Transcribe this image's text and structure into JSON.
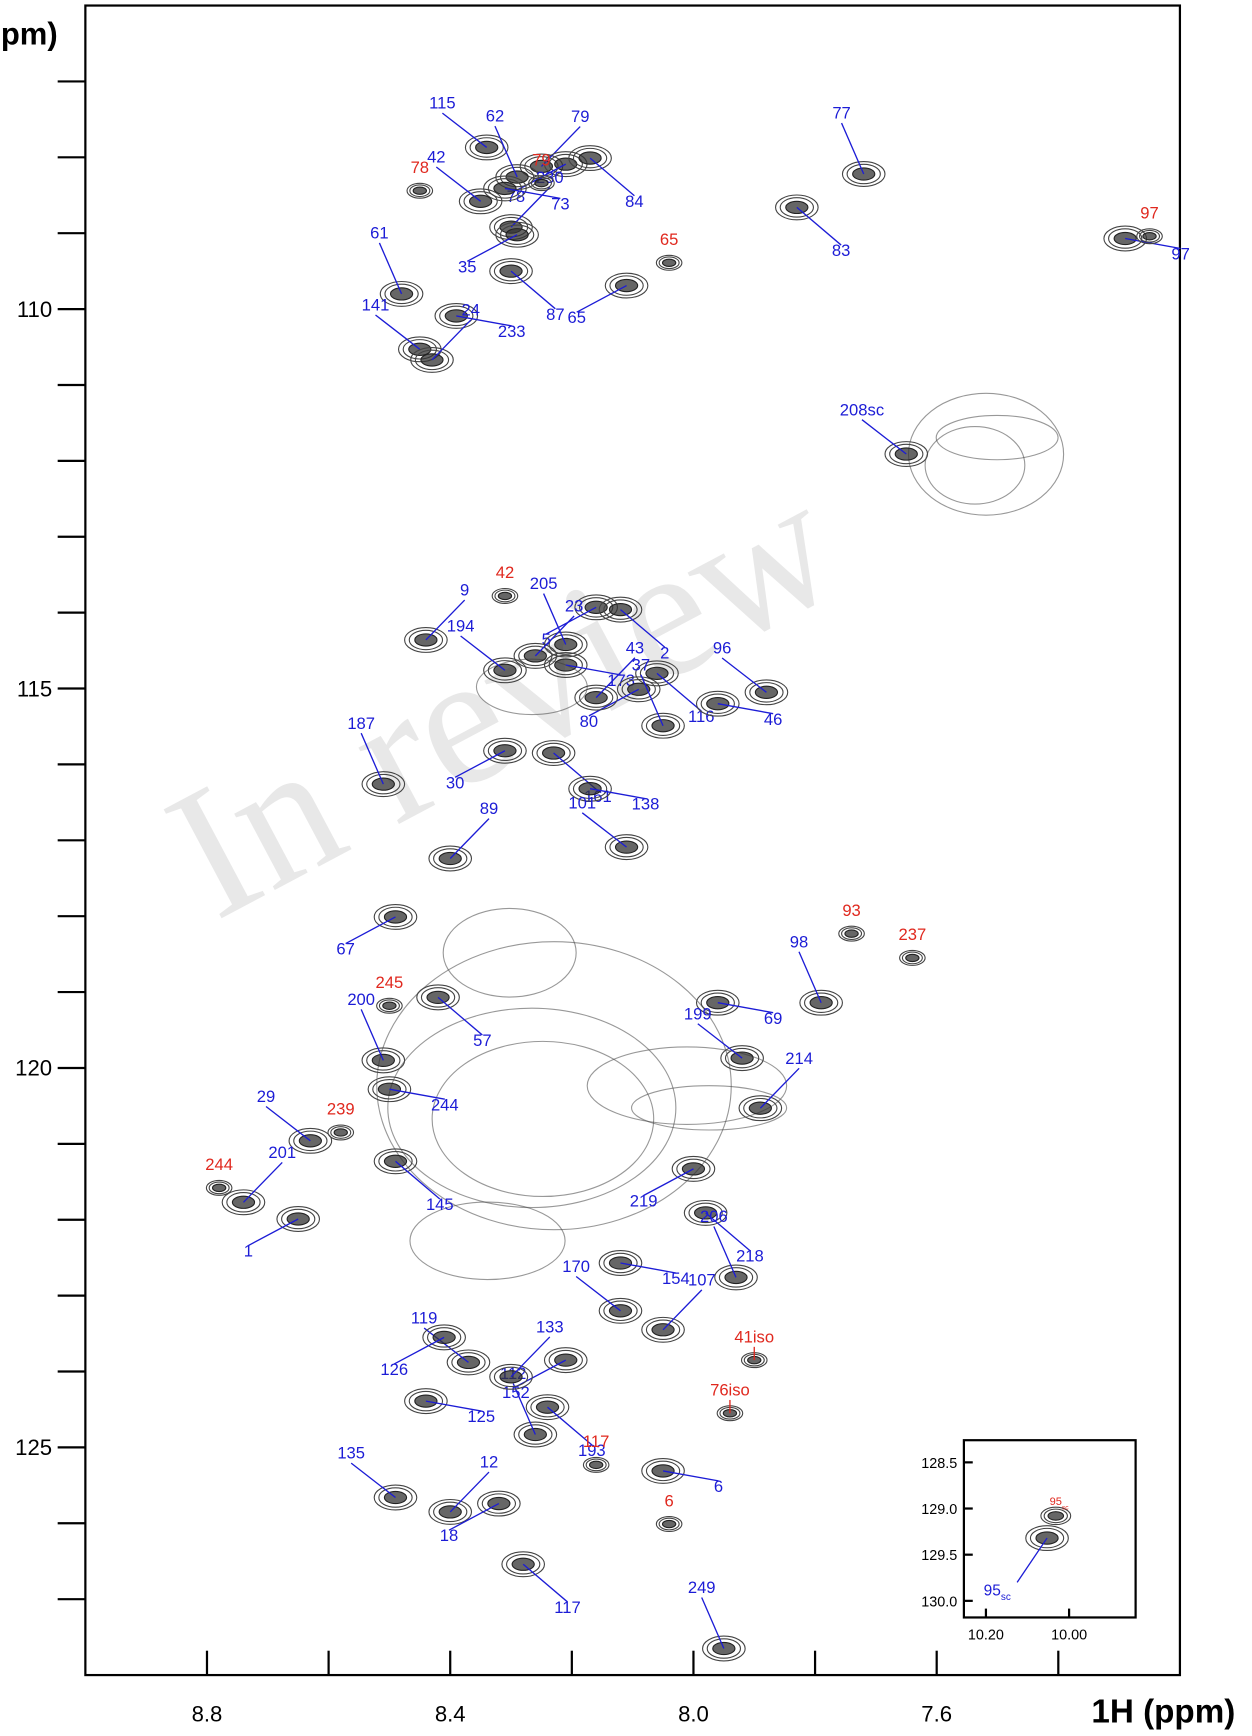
{
  "chart_data": {
    "type": "scatter",
    "x_label": "1H (ppm)",
    "y_label": "pm)",
    "watermark": "In review",
    "xlim": [
      9.0,
      7.2
    ],
    "ylim": [
      106,
      128
    ],
    "xticks": [
      8.8,
      8.4,
      {
        "value": 8,
        "label": "8.0"
      },
      7.6
    ],
    "xticks_minor": [
      8.6,
      8.2,
      7.8,
      7.4
    ],
    "yticks": [
      110,
      115,
      120,
      125
    ],
    "yticks_minor": [
      107,
      108,
      109,
      111,
      112,
      113,
      114,
      116,
      117,
      118,
      119,
      121,
      122,
      123,
      124,
      126,
      127
    ],
    "points": [
      {
        "label": "115",
        "x": 8.34,
        "y": 107.87,
        "color": "#1c1cd6"
      },
      {
        "label": "79",
        "x": 8.25,
        "y": 108.12,
        "color": "#1c1cd6"
      },
      {
        "label": "78",
        "x": 8.21,
        "y": 108.09,
        "color": "#1c1cd6"
      },
      {
        "label": "84",
        "x": 8.17,
        "y": 108.01,
        "color": "#1c1cd6"
      },
      {
        "label": "62",
        "x": 8.29,
        "y": 108.26,
        "color": "#1c1cd6"
      },
      {
        "label": "73",
        "x": 8.31,
        "y": 108.41,
        "color": "#1c1cd6"
      },
      {
        "label": "42",
        "x": 8.35,
        "y": 108.58,
        "color": "#1c1cd6"
      },
      {
        "label": "230",
        "x": 8.3,
        "y": 108.92,
        "color": "#1c1cd6"
      },
      {
        "label": "35",
        "x": 8.29,
        "y": 109.02,
        "color": "#1c1cd6"
      },
      {
        "label": "87",
        "x": 8.3,
        "y": 109.5,
        "color": "#1c1cd6"
      },
      {
        "label": "61",
        "x": 8.48,
        "y": 109.8,
        "color": "#1c1cd6"
      },
      {
        "label": "233",
        "x": 8.39,
        "y": 110.09,
        "color": "#1c1cd6"
      },
      {
        "label": "141",
        "x": 8.45,
        "y": 110.53,
        "color": "#1c1cd6"
      },
      {
        "label": "24",
        "x": 8.43,
        "y": 110.67,
        "color": "#1c1cd6"
      },
      {
        "label": "65",
        "x": 8.11,
        "y": 109.69,
        "color": "#1c1cd6"
      },
      {
        "label": "83",
        "x": 7.83,
        "y": 108.66,
        "color": "#1c1cd6"
      },
      {
        "label": "77",
        "x": 7.72,
        "y": 108.22,
        "color": "#1c1cd6"
      },
      {
        "label": "97",
        "x": 7.29,
        "y": 109.07,
        "color": "#1c1cd6"
      },
      {
        "label": "208sc",
        "x": 7.65,
        "y": 111.91,
        "color": "#1c1cd6"
      },
      {
        "label": "9",
        "x": 8.44,
        "y": 114.36,
        "color": "#1c1cd6"
      },
      {
        "label": "5",
        "x": 8.16,
        "y": 113.93,
        "color": "#1c1cd6"
      },
      {
        "label": "2",
        "x": 8.12,
        "y": 113.96,
        "color": "#1c1cd6"
      },
      {
        "label": "205",
        "x": 8.21,
        "y": 114.42,
        "color": "#1c1cd6"
      },
      {
        "label": "173",
        "x": 8.21,
        "y": 114.69,
        "color": "#1c1cd6"
      },
      {
        "label": "194",
        "x": 8.31,
        "y": 114.76,
        "color": "#1c1cd6"
      },
      {
        "label": "23",
        "x": 8.26,
        "y": 114.57,
        "color": "#1c1cd6"
      },
      {
        "label": "80",
        "x": 8.09,
        "y": 115.01,
        "color": "#1c1cd6"
      },
      {
        "label": "116",
        "x": 8.06,
        "y": 114.8,
        "color": "#1c1cd6"
      },
      {
        "label": "37",
        "x": 8.05,
        "y": 115.49,
        "color": "#1c1cd6"
      },
      {
        "label": "46",
        "x": 7.96,
        "y": 115.2,
        "color": "#1c1cd6"
      },
      {
        "label": "96",
        "x": 7.88,
        "y": 115.05,
        "color": "#1c1cd6"
      },
      {
        "label": "43",
        "x": 8.16,
        "y": 115.12,
        "color": "#1c1cd6"
      },
      {
        "label": "30",
        "x": 8.31,
        "y": 115.82,
        "color": "#1c1cd6"
      },
      {
        "label": "161",
        "x": 8.23,
        "y": 115.85,
        "color": "#1c1cd6"
      },
      {
        "label": "187",
        "x": 8.51,
        "y": 116.26,
        "color": "#1c1cd6"
      },
      {
        "label": "138",
        "x": 8.17,
        "y": 116.32,
        "color": "#1c1cd6"
      },
      {
        "label": "101",
        "x": 8.11,
        "y": 117.09,
        "color": "#1c1cd6"
      },
      {
        "label": "89",
        "x": 8.4,
        "y": 117.24,
        "color": "#1c1cd6"
      },
      {
        "label": "67",
        "x": 8.49,
        "y": 118.01,
        "color": "#1c1cd6"
      },
      {
        "label": "57",
        "x": 8.42,
        "y": 119.07,
        "color": "#1c1cd6"
      },
      {
        "label": "200",
        "x": 8.51,
        "y": 119.9,
        "color": "#1c1cd6"
      },
      {
        "label": "244",
        "x": 8.5,
        "y": 120.28,
        "color": "#1c1cd6"
      },
      {
        "label": "29",
        "x": 8.63,
        "y": 120.96,
        "color": "#1c1cd6"
      },
      {
        "label": "201",
        "x": 8.74,
        "y": 121.77,
        "color": "#1c1cd6"
      },
      {
        "label": "1",
        "x": 8.65,
        "y": 121.99,
        "color": "#1c1cd6"
      },
      {
        "label": "145",
        "x": 8.49,
        "y": 121.23,
        "color": "#1c1cd6"
      },
      {
        "label": "98",
        "x": 7.79,
        "y": 119.14,
        "color": "#1c1cd6"
      },
      {
        "label": "69",
        "x": 7.96,
        "y": 119.14,
        "color": "#1c1cd6"
      },
      {
        "label": "199",
        "x": 7.92,
        "y": 119.87,
        "color": "#1c1cd6"
      },
      {
        "label": "214",
        "x": 7.89,
        "y": 120.53,
        "color": "#1c1cd6"
      },
      {
        "label": "219",
        "x": 8.0,
        "y": 121.33,
        "color": "#1c1cd6"
      },
      {
        "label": "218",
        "x": 7.98,
        "y": 121.91,
        "color": "#1c1cd6"
      },
      {
        "label": "206",
        "x": 7.93,
        "y": 122.76,
        "color": "#1c1cd6"
      },
      {
        "label": "154",
        "x": 8.12,
        "y": 122.57,
        "color": "#1c1cd6"
      },
      {
        "label": "170",
        "x": 8.12,
        "y": 123.2,
        "color": "#1c1cd6"
      },
      {
        "label": "107",
        "x": 8.05,
        "y": 123.45,
        "color": "#1c1cd6"
      },
      {
        "label": "152",
        "x": 8.21,
        "y": 123.85,
        "color": "#1c1cd6"
      },
      {
        "label": "193",
        "x": 8.24,
        "y": 124.47,
        "color": "#1c1cd6"
      },
      {
        "label": "112",
        "x": 8.26,
        "y": 124.83,
        "color": "#1c1cd6"
      },
      {
        "label": "6",
        "x": 8.05,
        "y": 125.31,
        "color": "#1c1cd6"
      },
      {
        "label": "135",
        "x": 8.49,
        "y": 125.66,
        "color": "#1c1cd6"
      },
      {
        "label": "12",
        "x": 8.4,
        "y": 125.85,
        "color": "#1c1cd6"
      },
      {
        "label": "18",
        "x": 8.32,
        "y": 125.74,
        "color": "#1c1cd6"
      },
      {
        "label": "117",
        "x": 8.28,
        "y": 126.54,
        "color": "#1c1cd6"
      },
      {
        "label": "249",
        "x": 7.95,
        "y": 127.65,
        "color": "#1c1cd6"
      },
      {
        "label": "125",
        "x": 8.44,
        "y": 124.39,
        "color": "#1c1cd6"
      },
      {
        "label": "119",
        "x": 8.37,
        "y": 123.88,
        "color": "#1c1cd6"
      },
      {
        "label": "133",
        "x": 8.3,
        "y": 124.07,
        "color": "#1c1cd6"
      },
      {
        "label": "126",
        "x": 8.41,
        "y": 123.55,
        "color": "#1c1cd6"
      },
      {
        "label": "41iso",
        "x": 7.9,
        "y": 123.85,
        "color": "#e0281e"
      },
      {
        "label": "76iso",
        "x": 7.94,
        "y": 124.55,
        "color": "#e0281e"
      },
      {
        "label": "78",
        "x": 8.45,
        "y": 108.44,
        "color": "#e0281e"
      },
      {
        "label": "79",
        "x": 8.25,
        "y": 108.34,
        "color": "#e0281e"
      },
      {
        "label": "65",
        "x": 8.04,
        "y": 109.39,
        "color": "#e0281e"
      },
      {
        "label": "97",
        "x": 7.25,
        "y": 109.04,
        "color": "#e0281e"
      },
      {
        "label": "42",
        "x": 8.31,
        "y": 113.78,
        "color": "#e0281e"
      },
      {
        "label": "245",
        "x": 8.5,
        "y": 119.18,
        "color": "#e0281e"
      },
      {
        "label": "239",
        "x": 8.58,
        "y": 120.85,
        "color": "#e0281e"
      },
      {
        "label": "244",
        "x": 8.78,
        "y": 121.58,
        "color": "#e0281e"
      },
      {
        "label": "93",
        "x": 7.74,
        "y": 118.23,
        "color": "#e0281e"
      },
      {
        "label": "237",
        "x": 7.64,
        "y": 118.55,
        "color": "#e0281e"
      },
      {
        "label": "117",
        "x": 8.16,
        "y": 125.23,
        "color": "#e0281e"
      },
      {
        "label": "6",
        "x": 8.04,
        "y": 126.01,
        "color": "#e0281e"
      }
    ],
    "inset": {
      "xlim": [
        10.253,
        9.84
      ],
      "ylim": [
        128.26,
        130.18
      ],
      "xticks": [
        {
          "value": 10.2,
          "label": "10.20"
        },
        {
          "value": 10,
          "label": "10.00"
        }
      ],
      "yticks": [
        128.5,
        {
          "value": 129,
          "label": "129.0"
        },
        129.5,
        {
          "value": 130,
          "label": "130.0"
        }
      ],
      "points": [
        {
          "label": "95",
          "sub": "sc",
          "x": 10.053,
          "y": 129.32,
          "color": "#1c1cd6"
        },
        {
          "label": "95",
          "sub": "sc",
          "x": 10.032,
          "y": 129.08,
          "color": "#e0281e"
        }
      ]
    }
  }
}
